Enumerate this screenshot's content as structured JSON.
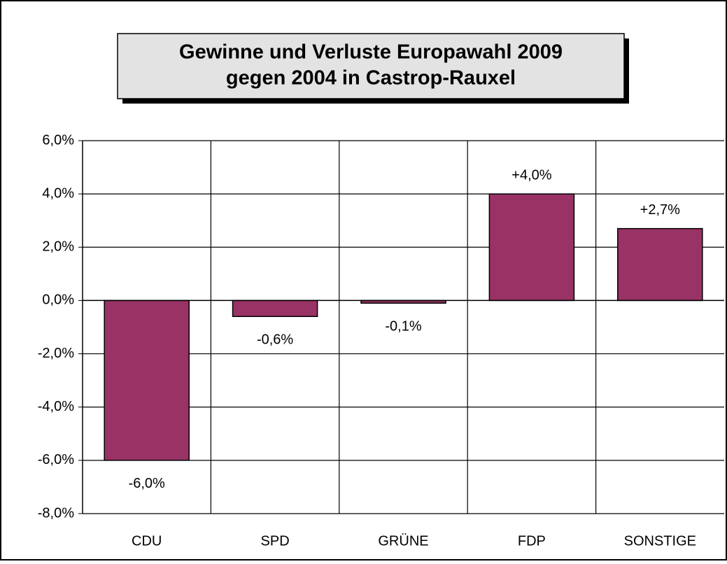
{
  "chart_data": {
    "type": "bar",
    "title": "Gewinne und Verluste Europawahl 2009",
    "subtitle": "gegen 2004 in Castrop-Rauxel",
    "categories": [
      "CDU",
      "SPD",
      "GRÜNE",
      "FDP",
      "SONSTIGE"
    ],
    "values": [
      -6.0,
      -0.6,
      -0.1,
      4.0,
      2.7
    ],
    "value_labels": [
      "-6,0%",
      "-0,6%",
      "-0,1%",
      "+4,0%",
      "+2,7%"
    ],
    "color": "#993366",
    "ylim": [
      -8,
      6
    ],
    "yticks": [
      {
        "value": -8,
        "label": "-8,0%"
      },
      {
        "value": -6,
        "label": "-6,0%"
      },
      {
        "value": -4,
        "label": "-4,0%"
      },
      {
        "value": -2,
        "label": "-2,0%"
      },
      {
        "value": 0,
        "label": "0,0%"
      },
      {
        "value": 2,
        "label": "2,0%"
      },
      {
        "value": 4,
        "label": "4,0%"
      },
      {
        "value": 6,
        "label": "6,0%"
      }
    ],
    "grid": true
  }
}
